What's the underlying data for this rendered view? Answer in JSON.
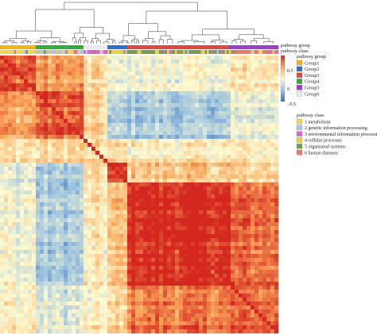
{
  "chart_data": {
    "type": "heatmap",
    "title": "",
    "annotation_rows": [
      "pathway group",
      "pathway class"
    ],
    "colorbar": {
      "ticks": [
        0.5,
        0,
        -0.5
      ],
      "tick_labels": [
        "0.5",
        "0",
        "−0.5"
      ],
      "range": [
        -0.7,
        0.7
      ],
      "stops": [
        "#3a6fb5",
        "#9cc3df",
        "#fffbd0",
        "#f9a65a",
        "#d3271f"
      ]
    },
    "legend_group": {
      "title": "pathway group",
      "entries": [
        {
          "label": "Group1",
          "color": "#f5b40a"
        },
        {
          "label": "Group2",
          "color": "#2c6fd8"
        },
        {
          "label": "Group3",
          "color": "#e8433a"
        },
        {
          "label": "Group4",
          "color": "#2fae3a"
        },
        {
          "label": "Group5",
          "color": "#a03ad6"
        },
        {
          "label": "Group6",
          "color": "#e9e9ef"
        }
      ]
    },
    "legend_class": {
      "title": "pathway class",
      "entries": [
        {
          "label": "1 metabolism",
          "color": "#f3d64a"
        },
        {
          "label": "2 genetic information processing",
          "color": "#a8c4e8"
        },
        {
          "label": "3 environmental information processing",
          "color": "#ee5bd8"
        },
        {
          "label": "4 cellular processes",
          "color": "#e7d23a"
        },
        {
          "label": "5 organismal systems",
          "color": "#7a9a4e"
        },
        {
          "label": "6 human diseases",
          "color": "#ea7a66"
        }
      ]
    },
    "cluster_blocks": [
      {
        "group": "Group1",
        "size": 46,
        "within": 0.55
      },
      {
        "group": "Group4",
        "size": 58,
        "within": 0.55
      },
      {
        "group": "Group6",
        "size": 30,
        "within": 0.1
      },
      {
        "group": "Group2",
        "size": 26,
        "within": 0.6
      },
      {
        "group": "Group3",
        "size": 128,
        "within": 0.7
      },
      {
        "group": "Group5",
        "size": 62,
        "within": 0.55
      }
    ],
    "block_correlations": [
      [
        0.55,
        0.35,
        0.1,
        -0.1,
        -0.05,
        0.05
      ],
      [
        0.35,
        0.55,
        0.15,
        -0.3,
        -0.3,
        -0.1
      ],
      [
        0.1,
        0.15,
        0.1,
        0.1,
        0.05,
        0.05
      ],
      [
        -0.1,
        -0.3,
        0.1,
        0.6,
        0.2,
        0.15
      ],
      [
        -0.05,
        -0.3,
        0.05,
        0.2,
        0.7,
        0.5
      ],
      [
        0.05,
        -0.1,
        0.05,
        0.15,
        0.5,
        0.55
      ]
    ]
  }
}
